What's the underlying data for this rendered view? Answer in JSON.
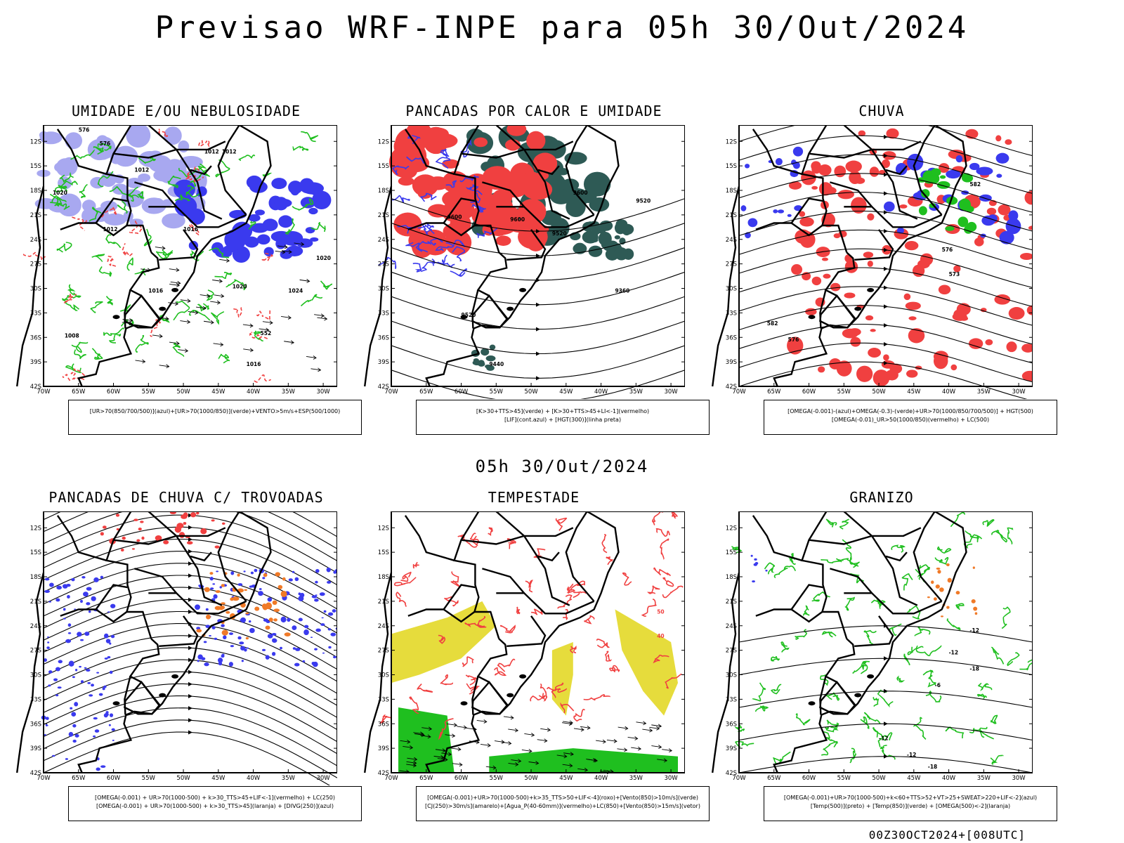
{
  "header": {
    "title": "Previsao WRF-INPE  para 05h 30/Out/2024",
    "middle_title": "05h 30/Out/2024",
    "footer": "00Z30OCT2024+[008UTC]"
  },
  "axes": {
    "lat_labels": [
      "12S",
      "15S",
      "18S",
      "21S",
      "24S",
      "27S",
      "30S",
      "33S",
      "36S",
      "39S",
      "42S"
    ],
    "lon_labels": [
      "70W",
      "65W",
      "60W",
      "55W",
      "50W",
      "45W",
      "40W",
      "35W",
      "30W"
    ]
  },
  "panels": [
    {
      "title": "UMIDADE E/OU NEBULOSIDADE",
      "legend_lines": [
        "[UR>70(850/700/500)](azul)+[UR>70(1000/850)](verde)+VENTO>5m/s+ESP(500/1000)"
      ],
      "contour_labels": [
        "1012",
        "1012",
        "1012",
        "1016",
        "1016",
        "1020",
        "1024",
        "1020",
        "1016",
        "1012",
        "1008",
        "1020",
        "576",
        "576",
        "552"
      ]
    },
    {
      "title": "PANCADAS POR CALOR E UMIDADE",
      "legend_lines": [
        "[K>30+TTS>45](verde) + [K>30+TTS>45+LI<-1](vermelho)",
        "[LIF](cont.azul) + [HGT(300)](linha preta)"
      ],
      "contour_labels": [
        "9600",
        "9600",
        "9600",
        "9520",
        "9520",
        "9360",
        "9520",
        "9440"
      ]
    },
    {
      "title": "CHUVA",
      "legend_lines": [
        "[OMEGA(-0.001)-(azul)+OMEGA(-0.3)-(verde)+UR>70(1000/850/700/500)] + HGT(500)",
        "[OMEGA(-0.01)_UR>50(1000/850)(vermelho) + LC(500)"
      ],
      "contour_labels": [
        "582",
        "576",
        "573",
        "576",
        "582"
      ]
    },
    {
      "title": "PANCADAS DE CHUVA C/ TROVOADAS",
      "legend_lines": [
        "[OMEGA(-0.001) + UR>70(1000-500) + k>30_TTS>45+LIF<-1](vermelho) + LC(250)",
        "[OMEGA(-0.001) + UR>70(1000-500) + k>30_TTS>45](laranja) + [DIVG(250)](azul)"
      ],
      "contour_labels": []
    },
    {
      "title": "TEMPESTADE",
      "legend_lines": [
        "[OMEGA(-0.001)+UR>70(1000-500)+k>35_TTS>50+LIF<-4](roxo)+[Vento(850)>10m/s](verde)",
        "[CJ(250)>30m/s](amarelo)+[Agua_P(40-60mm)](vermelho)+LC(850)+[Vento(850)>15m/s](vetor)"
      ],
      "contour_labels": [
        "50",
        "40"
      ]
    },
    {
      "title": "GRANIZO",
      "legend_lines": [
        "[OMEGA(-0.001)+UR>70(1000-500)+k<60+TTS>52+VT>25+SWEAT>220+LIF<-2](azul)",
        "[Temp(500)](preto) + [Temp(850)](verde) + [OMEGA(500)<-2](laranja)"
      ],
      "contour_labels": [
        "-12",
        "-12",
        "-18",
        "-12",
        "-18",
        "-12",
        "-6"
      ]
    }
  ],
  "colors": {
    "red": "#f04040",
    "green": "#1fbf1f",
    "blue": "#3a3aee",
    "lavender": "#a8a8f0",
    "teal": "#2e5a55",
    "yellow": "#e6dc3c",
    "orange": "#f07a28",
    "black": "#000000"
  }
}
